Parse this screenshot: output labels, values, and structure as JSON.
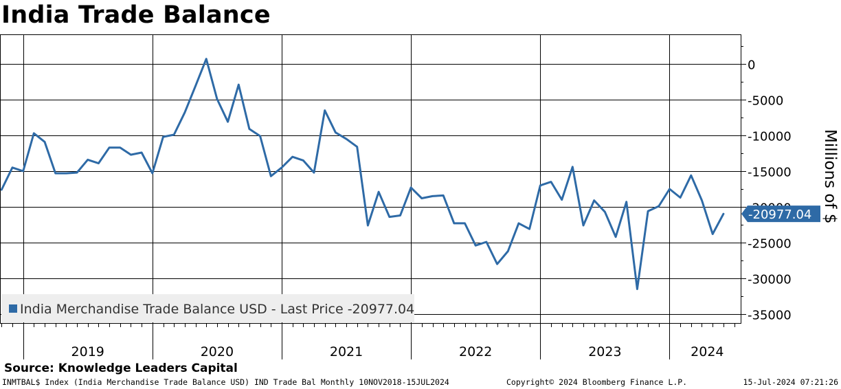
{
  "title": "India Trade Balance",
  "source": "Source: Knowledge Leaders Capital",
  "footer": {
    "left": "INMTBAL$ Index (India Merchandise Trade Balance USD) IND Trade Bal  Monthly 10NOV2018-15JUL2024",
    "middle": "Copyright© 2024 Bloomberg Finance L.P.",
    "right": "15-Jul-2024 07:21:26"
  },
  "colors": {
    "line": "#2e6aa6",
    "last_box": "#2e6aa6",
    "legend_bg": "#eeeeee",
    "grid": "#000000"
  },
  "chart_data": {
    "type": "line",
    "title": "India Trade Balance",
    "ylabel": "Millions of $",
    "ylim": [
      -36500,
      3000
    ],
    "yticks": [
      0,
      -5000,
      -10000,
      -15000,
      -20000,
      -25000,
      -30000,
      -35000
    ],
    "ytick_labels": [
      "0",
      "-5000",
      "-10000",
      "-15000",
      "-20000",
      "-25000",
      "-30000",
      "-35000"
    ],
    "x_start_month": "2018-11",
    "x_end_month": "2024-07",
    "year_labels": [
      "2019",
      "2020",
      "2021",
      "2022",
      "2023",
      "2024"
    ],
    "legend": "India Merchandise Trade Balance USD - Last Price -20977.04",
    "last_value_label": "-20977.04",
    "series": [
      {
        "name": "India Merchandise Trade Balance USD",
        "start_month": "2018-11",
        "values": [
          -17600,
          -14500,
          -15000,
          -9700,
          -10900,
          -15300,
          -15300,
          -15200,
          -13400,
          -13900,
          -11700,
          -11700,
          -12700,
          -12400,
          -15300,
          -10200,
          -9900,
          -6800,
          -3100,
          700,
          -4900,
          -8100,
          -2900,
          -9100,
          -10100,
          -15700,
          -14500,
          -13000,
          -13500,
          -15200,
          -6500,
          -9600,
          -10500,
          -11600,
          -22600,
          -17900,
          -21400,
          -21200,
          -17300,
          -18800,
          -18500,
          -18400,
          -22300,
          -22300,
          -25400,
          -24900,
          -28000,
          -26200,
          -22300,
          -23100,
          -17000,
          -16500,
          -19000,
          -14400,
          -22600,
          -19100,
          -20700,
          -24200,
          -19300,
          -31500,
          -20600,
          -19900,
          -17500,
          -18700,
          -15600,
          -19100,
          -23800,
          -20977
        ]
      }
    ]
  }
}
